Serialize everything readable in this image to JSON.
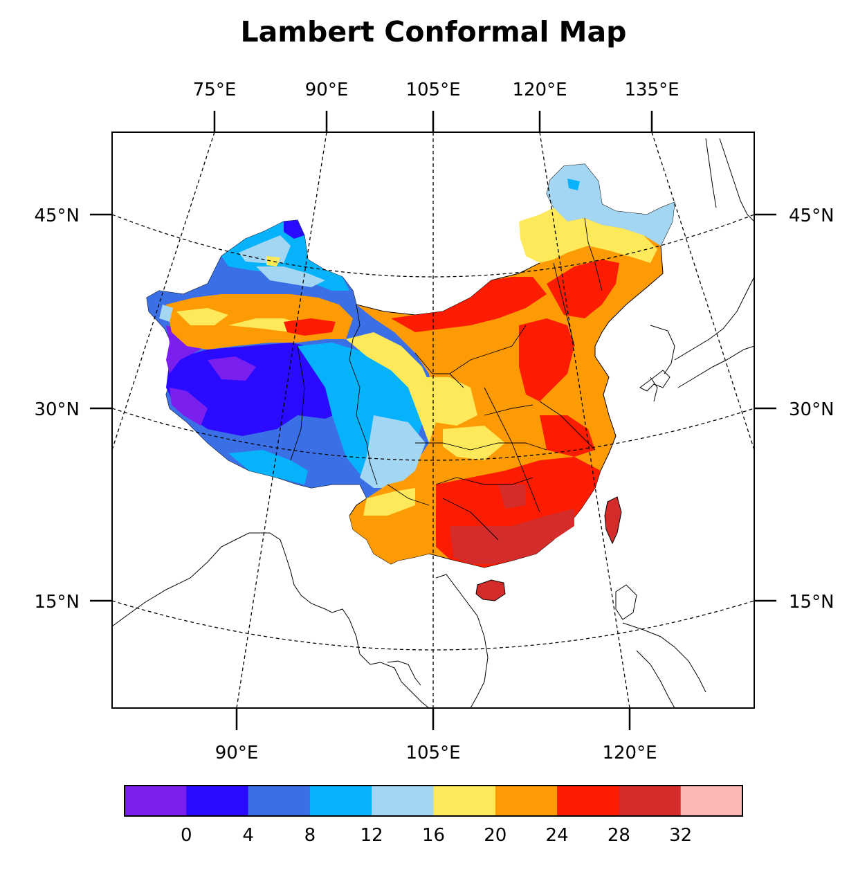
{
  "title": "Lambert Conformal Map",
  "map": {
    "top_lon_labels": [
      "75°E",
      "90°E",
      "105°E",
      "120°E",
      "135°E"
    ],
    "bottom_lon_labels": [
      "90°E",
      "105°E",
      "120°E"
    ],
    "left_lat_labels": [
      "45°N",
      "30°N",
      "15°N"
    ],
    "right_lat_labels": [
      "45°N",
      "30°N",
      "15°N"
    ],
    "projection": "Lambert Conformal",
    "gridlines": "dashed"
  },
  "colorbar": {
    "tick_labels": [
      "0",
      "4",
      "8",
      "12",
      "16",
      "20",
      "24",
      "28",
      "32"
    ],
    "colors": [
      "#7b1fee",
      "#2a0bff",
      "#3a6fe6",
      "#06b3fb",
      "#a3d6f3",
      "#fde95a",
      "#fc9b04",
      "#fb1c02",
      "#d42b2b",
      "#fdb6b6"
    ]
  }
}
